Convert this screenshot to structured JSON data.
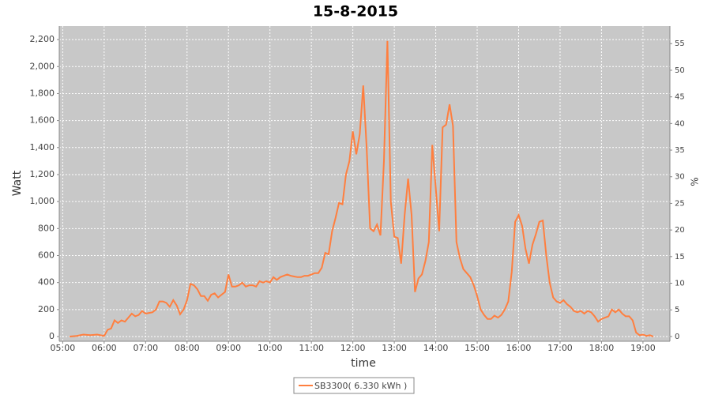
{
  "chart_data": {
    "type": "line",
    "title": "15-8-2015",
    "x_label": "time",
    "y_label": "Watt",
    "y2_label": "%",
    "x": [
      "05:10",
      "05:20",
      "05:30",
      "05:40",
      "05:50",
      "06:00",
      "06:05",
      "06:10",
      "06:15",
      "06:20",
      "06:25",
      "06:30",
      "06:35",
      "06:40",
      "06:45",
      "06:50",
      "06:55",
      "07:00",
      "07:05",
      "07:10",
      "07:15",
      "07:20",
      "07:25",
      "07:30",
      "07:35",
      "07:40",
      "07:45",
      "07:50",
      "07:55",
      "08:00",
      "08:05",
      "08:10",
      "08:15",
      "08:20",
      "08:25",
      "08:30",
      "08:35",
      "08:40",
      "08:45",
      "08:50",
      "08:55",
      "09:00",
      "09:05",
      "09:10",
      "09:15",
      "09:20",
      "09:25",
      "09:30",
      "09:35",
      "09:40",
      "09:45",
      "09:50",
      "09:55",
      "10:00",
      "10:05",
      "10:10",
      "10:15",
      "10:20",
      "10:25",
      "10:30",
      "10:35",
      "10:40",
      "10:45",
      "10:50",
      "10:55",
      "11:00",
      "11:05",
      "11:10",
      "11:15",
      "11:20",
      "11:25",
      "11:30",
      "11:35",
      "11:40",
      "11:45",
      "11:50",
      "11:55",
      "12:00",
      "12:05",
      "12:10",
      "12:15",
      "12:20",
      "12:25",
      "12:30",
      "12:35",
      "12:40",
      "12:45",
      "12:50",
      "12:55",
      "13:00",
      "13:05",
      "13:10",
      "13:15",
      "13:20",
      "13:25",
      "13:30",
      "13:35",
      "13:40",
      "13:45",
      "13:50",
      "13:55",
      "14:00",
      "14:05",
      "14:10",
      "14:15",
      "14:20",
      "14:25",
      "14:30",
      "14:35",
      "14:40",
      "14:45",
      "14:50",
      "14:55",
      "15:00",
      "15:05",
      "15:10",
      "15:15",
      "15:20",
      "15:25",
      "15:30",
      "15:35",
      "15:40",
      "15:45",
      "15:50",
      "15:55",
      "16:00",
      "16:05",
      "16:10",
      "16:15",
      "16:20",
      "16:25",
      "16:30",
      "16:35",
      "16:40",
      "16:45",
      "16:50",
      "16:55",
      "17:00",
      "17:05",
      "17:10",
      "17:15",
      "17:20",
      "17:25",
      "17:30",
      "17:35",
      "17:40",
      "17:45",
      "17:50",
      "17:55",
      "18:00",
      "18:05",
      "18:10",
      "18:15",
      "18:20",
      "18:25",
      "18:30",
      "18:35",
      "18:40",
      "18:45",
      "18:50",
      "18:55",
      "19:00",
      "19:05",
      "19:10",
      "19:15"
    ],
    "series": [
      {
        "name": "SB3300( 6.330 kWh )",
        "color": "#ff7f3f",
        "values": [
          0,
          5,
          15,
          10,
          15,
          5,
          50,
          60,
          120,
          100,
          120,
          110,
          140,
          170,
          150,
          160,
          190,
          170,
          175,
          180,
          200,
          260,
          260,
          250,
          220,
          270,
          230,
          165,
          200,
          270,
          390,
          380,
          350,
          300,
          300,
          265,
          310,
          320,
          290,
          310,
          330,
          460,
          370,
          370,
          380,
          400,
          370,
          380,
          380,
          370,
          410,
          400,
          410,
          400,
          440,
          420,
          440,
          450,
          460,
          450,
          445,
          440,
          440,
          450,
          450,
          460,
          470,
          470,
          510,
          620,
          610,
          780,
          880,
          990,
          980,
          1200,
          1300,
          1520,
          1350,
          1500,
          1860,
          1400,
          800,
          780,
          830,
          750,
          1300,
          2190,
          1000,
          740,
          730,
          540,
          900,
          1170,
          900,
          330,
          430,
          460,
          560,
          700,
          1420,
          1100,
          780,
          1550,
          1570,
          1720,
          1560,
          700,
          580,
          500,
          470,
          440,
          380,
          300,
          200,
          160,
          130,
          130,
          155,
          140,
          160,
          200,
          260,
          480,
          850,
          900,
          820,
          650,
          540,
          680,
          760,
          850,
          860,
          600,
          400,
          290,
          260,
          250,
          270,
          240,
          220,
          190,
          180,
          190,
          170,
          190,
          180,
          150,
          110,
          130,
          140,
          150,
          200,
          180,
          200,
          170,
          150,
          150,
          120,
          30,
          10,
          15,
          5,
          10,
          0
        ]
      }
    ],
    "xlim": [
      "04:55",
      "19:39"
    ],
    "xticks": [
      "05:00",
      "06:00",
      "07:00",
      "08:00",
      "09:00",
      "10:00",
      "11:00",
      "12:00",
      "13:00",
      "14:00",
      "15:00",
      "16:00",
      "17:00",
      "18:00",
      "19:00"
    ],
    "ylim": [
      -35,
      2300
    ],
    "yticks": [
      0,
      200,
      400,
      600,
      800,
      {
        "value": 1000,
        "label": "1,000"
      },
      {
        "value": 1200,
        "label": "1,200"
      },
      {
        "value": 1400,
        "label": "1,400"
      },
      {
        "value": 1600,
        "label": "1,600"
      },
      {
        "value": 1800,
        "label": "1,800"
      },
      {
        "value": 2000,
        "label": "2,000"
      },
      {
        "value": 2200,
        "label": "2,200"
      }
    ],
    "y2lim": [
      -0.9,
      58.3
    ],
    "y2ticks": [
      0,
      5,
      10,
      15,
      20,
      25,
      30,
      35,
      40,
      45,
      50,
      55
    ],
    "grid": true
  }
}
